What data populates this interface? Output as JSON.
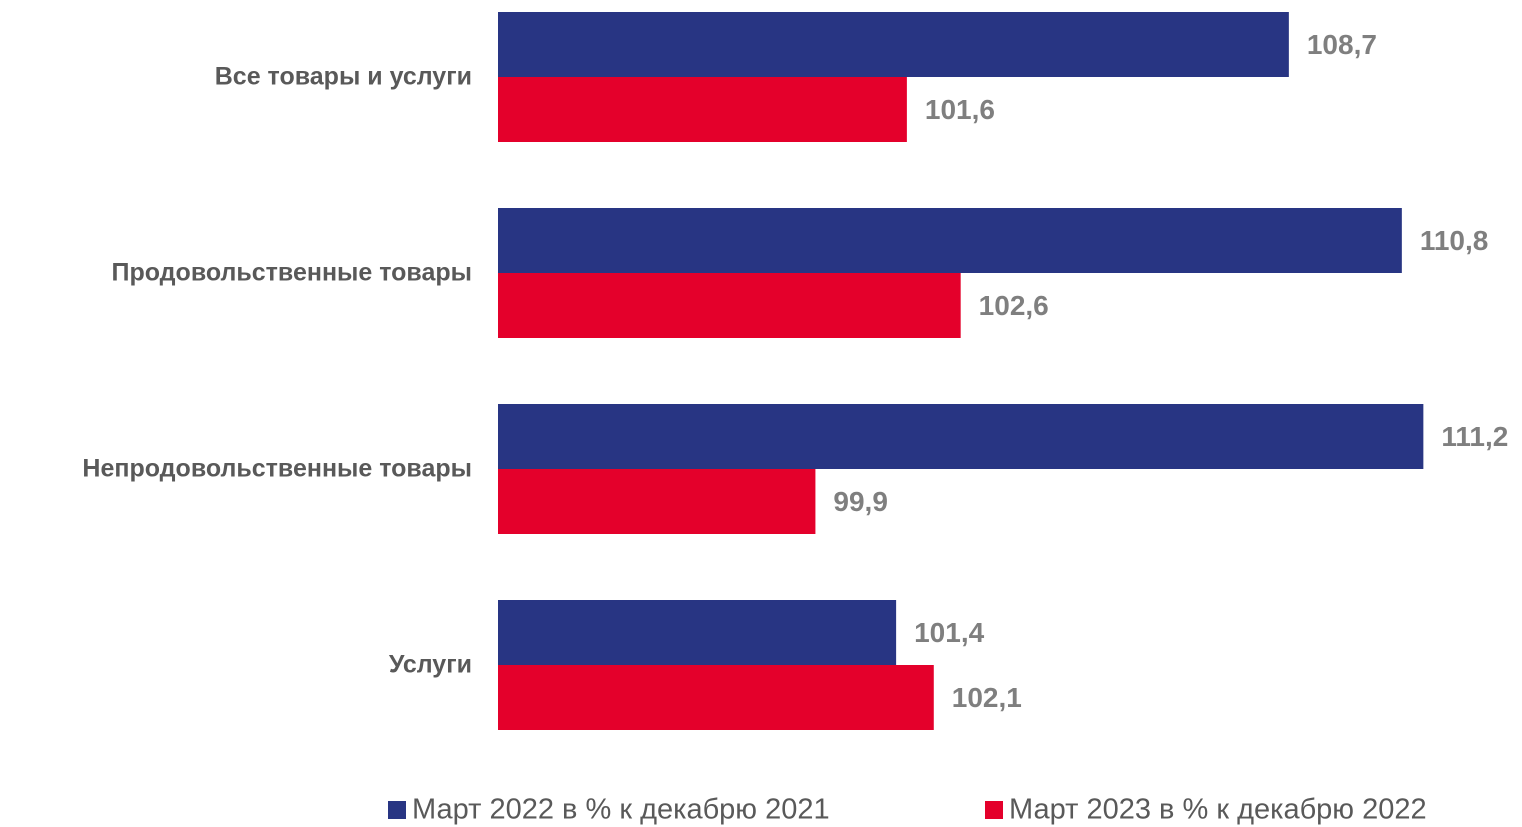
{
  "chart_data": {
    "type": "hbar",
    "categories": [
      "Все товары и услуги",
      "Продовольственные товары",
      "Непродовольственные товары",
      "Услуги"
    ],
    "series": [
      {
        "name": "Март 2022 в % к декабрю 2021",
        "color": "#283583",
        "values": [
          108.7,
          110.8,
          111.2,
          101.4
        ],
        "value_labels": [
          "108,7",
          "110,8",
          "111,2",
          "101,4"
        ]
      },
      {
        "name": "Март 2023 в % к декабрю 2022",
        "color": "#e4002b",
        "values": [
          101.6,
          102.6,
          99.9,
          102.1
        ],
        "value_labels": [
          "101,6",
          "102,6",
          "99,9",
          "102,1"
        ]
      }
    ],
    "xlim": [
      94,
      112
    ],
    "legend": "bottom"
  }
}
